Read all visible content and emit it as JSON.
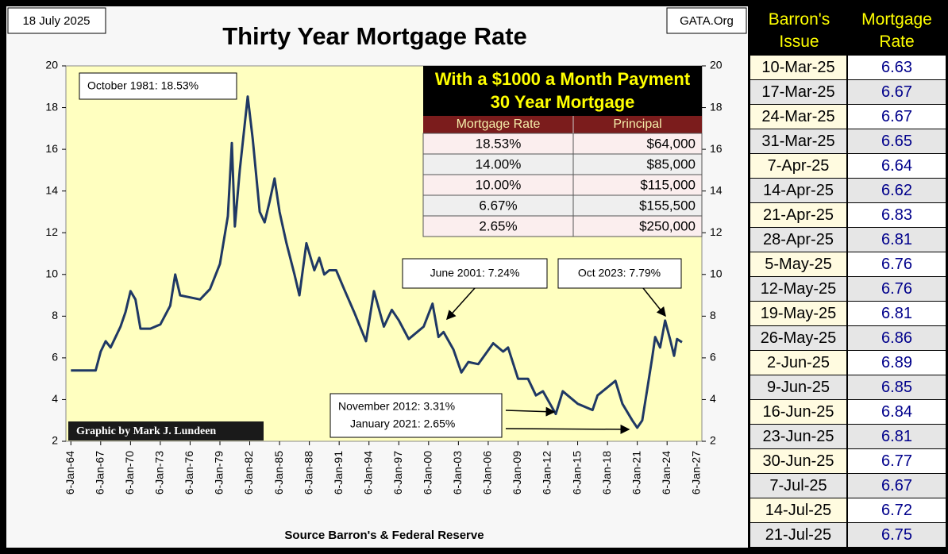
{
  "chart_data": {
    "type": "line",
    "title": "Thirty Year Mortgage Rate",
    "date_label": "18 July 2025",
    "site_label": "GATA.Org",
    "source": "Source Barron's & Federal Reserve",
    "credit": "Graphic by Mark J. Lundeen",
    "annotations": [
      "October 1981:  18.53%",
      "June 2001:  7.24%",
      "Oct 2023:  7.79%",
      "November 2012:  3.31%",
      "January 2021:  2.65%"
    ],
    "xlim": [
      1963.5,
      2027.5
    ],
    "xticks": [
      {
        "value": 1964,
        "label": "6-Jan-64"
      },
      {
        "value": 1967,
        "label": "6-Jan-67"
      },
      {
        "value": 1970,
        "label": "6-Jan-70"
      },
      {
        "value": 1973,
        "label": "6-Jan-73"
      },
      {
        "value": 1976,
        "label": "6-Jan-76"
      },
      {
        "value": 1979,
        "label": "6-Jan-79"
      },
      {
        "value": 1982,
        "label": "6-Jan-82"
      },
      {
        "value": 1985,
        "label": "6-Jan-85"
      },
      {
        "value": 1988,
        "label": "6-Jan-88"
      },
      {
        "value": 1991,
        "label": "6-Jan-91"
      },
      {
        "value": 1994,
        "label": "6-Jan-94"
      },
      {
        "value": 1997,
        "label": "6-Jan-97"
      },
      {
        "value": 2000,
        "label": "6-Jan-00"
      },
      {
        "value": 2003,
        "label": "6-Jan-03"
      },
      {
        "value": 2006,
        "label": "6-Jan-06"
      },
      {
        "value": 2009,
        "label": "6-Jan-09"
      },
      {
        "value": 2012,
        "label": "6-Jan-12"
      },
      {
        "value": 2015,
        "label": "6-Jan-15"
      },
      {
        "value": 2018,
        "label": "6-Jan-18"
      },
      {
        "value": 2021,
        "label": "6-Jan-21"
      },
      {
        "value": 2024,
        "label": "6-Jan-24"
      },
      {
        "value": 2027,
        "label": "6-Jan-27"
      }
    ],
    "ylim": [
      2,
      20
    ],
    "yticks": [
      2,
      4,
      6,
      8,
      10,
      12,
      14,
      16,
      18,
      20
    ],
    "grid": false,
    "series": [
      {
        "color": "#1f3864",
        "x": [
          1964,
          1966.5,
          1967,
          1967.5,
          1968,
          1969,
          1969.5,
          1970,
          1970.5,
          1971,
          1972,
          1973,
          1974,
          1974.5,
          1975,
          1976,
          1977,
          1978,
          1979,
          1979.8,
          1980.2,
          1980.5,
          1981,
          1981.8,
          1982.3,
          1983,
          1983.5,
          1984,
          1984.5,
          1985,
          1985.7,
          1986.5,
          1987,
          1987.7,
          1988.5,
          1989,
          1989.5,
          1990,
          1990.7,
          1991.5,
          1992.5,
          1993.7,
          1994.5,
          1995.5,
          1996.3,
          1997,
          1998,
          1999.5,
          2000.4,
          2001,
          2001.5,
          2002.5,
          2003.3,
          2004,
          2005,
          2006.5,
          2007.5,
          2008,
          2009,
          2010,
          2010.8,
          2011.5,
          2012.8,
          2013.5,
          2014,
          2015,
          2016.5,
          2017,
          2018.8,
          2019.5,
          2020.5,
          2021,
          2021.5,
          2022,
          2022.5,
          2022.8,
          2023.3,
          2023.8,
          2024.3,
          2024.7,
          2025,
          2025.5
        ],
        "values": [
          5.4,
          5.4,
          6.3,
          6.8,
          6.5,
          7.5,
          8.2,
          9.2,
          8.8,
          7.4,
          7.4,
          7.6,
          8.5,
          10.0,
          9.0,
          8.9,
          8.8,
          9.3,
          10.5,
          12.8,
          16.3,
          12.3,
          15.0,
          18.53,
          16.5,
          13.0,
          12.5,
          13.5,
          14.6,
          13.0,
          11.5,
          10.0,
          9.0,
          11.5,
          10.2,
          10.8,
          10.0,
          10.2,
          10.2,
          9.3,
          8.2,
          6.8,
          9.2,
          7.5,
          8.3,
          7.8,
          6.9,
          7.5,
          8.6,
          7.0,
          7.24,
          6.4,
          5.3,
          5.8,
          5.7,
          6.7,
          6.3,
          6.5,
          5.0,
          5.0,
          4.2,
          4.4,
          3.31,
          4.4,
          4.2,
          3.8,
          3.5,
          4.2,
          4.9,
          3.8,
          3.0,
          2.65,
          3.0,
          4.5,
          6.0,
          7.0,
          6.5,
          7.79,
          6.9,
          6.1,
          6.9,
          6.75
        ]
      }
    ]
  },
  "payment_table": {
    "title": [
      "With a $1000 a Month Payment",
      "30 Year Mortgage"
    ],
    "header": [
      "Mortgage Rate",
      "Principal"
    ],
    "rows": [
      [
        "18.53%",
        "$64,000"
      ],
      [
        "14.00%",
        "$85,000"
      ],
      [
        "10.00%",
        "$115,000"
      ],
      [
        "6.67%",
        "$155,500"
      ],
      [
        "2.65%",
        "$250,000"
      ]
    ]
  },
  "issue_table": {
    "header": [
      "Barron's Issue",
      "Mortgage Rate"
    ],
    "rows": [
      [
        "10-Mar-25",
        6.63
      ],
      [
        "17-Mar-25",
        6.67
      ],
      [
        "24-Mar-25",
        6.67
      ],
      [
        "31-Mar-25",
        6.65
      ],
      [
        "7-Apr-25",
        6.64
      ],
      [
        "14-Apr-25",
        6.62
      ],
      [
        "21-Apr-25",
        6.83
      ],
      [
        "28-Apr-25",
        6.81
      ],
      [
        "5-May-25",
        6.76
      ],
      [
        "12-May-25",
        6.76
      ],
      [
        "19-May-25",
        6.81
      ],
      [
        "26-May-25",
        6.86
      ],
      [
        "2-Jun-25",
        6.89
      ],
      [
        "9-Jun-25",
        6.85
      ],
      [
        "16-Jun-25",
        6.84
      ],
      [
        "23-Jun-25",
        6.81
      ],
      [
        "30-Jun-25",
        6.77
      ],
      [
        "7-Jul-25",
        6.67
      ],
      [
        "14-Jul-25",
        6.72
      ],
      [
        "21-Jul-25",
        6.75
      ]
    ]
  }
}
